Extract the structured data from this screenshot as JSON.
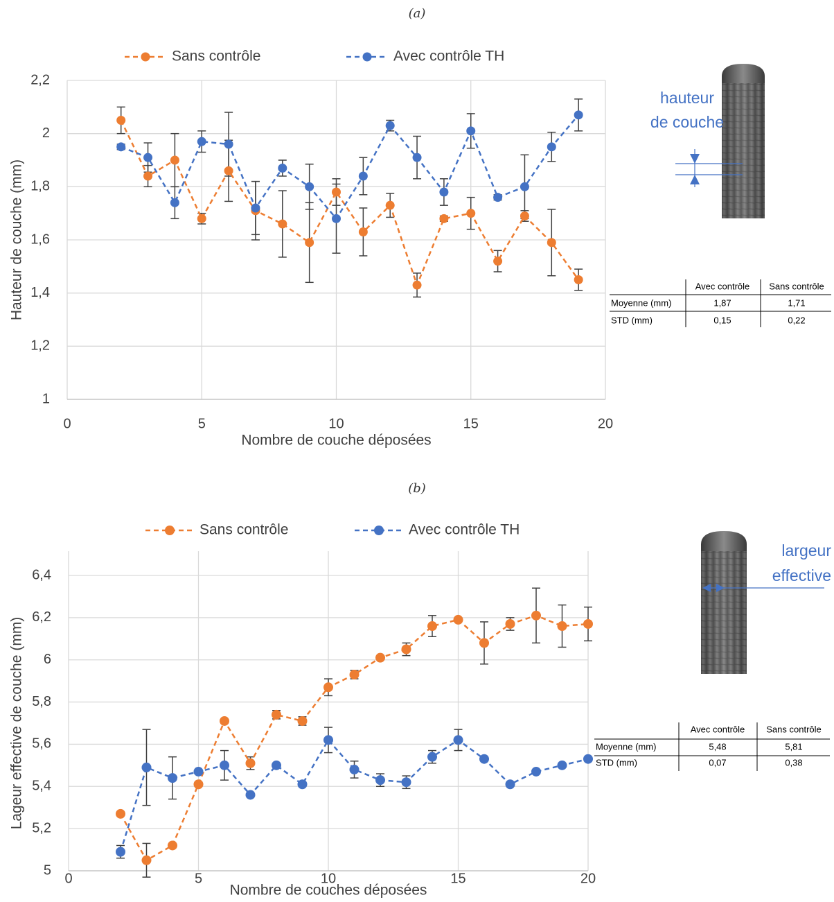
{
  "chart_data": [
    {
      "type": "line",
      "title": "(a)",
      "xlabel": "Nombre de couche déposées",
      "ylabel": "Hauteur de couche (mm)",
      "xlim": [
        0,
        20
      ],
      "xticks": [
        0,
        5,
        10,
        15,
        20
      ],
      "ylim": [
        1,
        2.2
      ],
      "yticks": [
        1,
        {
          "value": 1.2,
          "label": "1,2"
        },
        {
          "value": 1.4,
          "label": "1,4"
        },
        {
          "value": 1.6,
          "label": "1,6"
        },
        {
          "value": 1.8,
          "label": "1,8"
        },
        2,
        {
          "value": 2.2,
          "label": "2,2"
        }
      ],
      "grid": true,
      "legend": "top",
      "x": [
        2,
        3,
        4,
        5,
        6,
        7,
        8,
        9,
        10,
        11,
        12,
        13,
        14,
        15,
        16,
        17,
        18,
        19
      ],
      "series": [
        {
          "name": "Sans contrôle",
          "color": "#ed7d31",
          "values": [
            2.05,
            1.84,
            1.9,
            1.68,
            1.86,
            1.71,
            1.66,
            1.59,
            1.78,
            1.63,
            1.73,
            1.43,
            1.68,
            1.7,
            1.52,
            1.69,
            1.59,
            1.45
          ],
          "errors": [
            0.05,
            0.04,
            0.1,
            0.02,
            0.115,
            0.11,
            0.125,
            0.15,
            0.05,
            0.09,
            0.045,
            0.045,
            0.01,
            0.06,
            0.04,
            0.02,
            0.125,
            0.04
          ]
        },
        {
          "name": "Avec contrôle TH",
          "color": "#4472c4",
          "values": [
            1.95,
            1.91,
            1.74,
            1.97,
            1.96,
            1.72,
            1.87,
            1.8,
            1.68,
            1.84,
            2.03,
            1.91,
            1.78,
            2.01,
            1.76,
            1.8,
            1.95,
            2.07
          ],
          "errors": [
            0.01,
            0.055,
            0.06,
            0.04,
            0.12,
            0.1,
            0.03,
            0.085,
            0.13,
            0.07,
            0.02,
            0.08,
            0.05,
            0.065,
            0.01,
            0.12,
            0.055,
            0.06
          ]
        }
      ],
      "annotation": [
        "hauteur",
        "de couche"
      ],
      "table": {
        "columns": [
          "Avec contrôle",
          "Sans contrôle"
        ],
        "rows": [
          {
            "label": "Moyenne (mm)",
            "values": [
              "1,87",
              "1,71"
            ]
          },
          {
            "label": "STD (mm)",
            "values": [
              "0,15",
              "0,22"
            ]
          }
        ]
      }
    },
    {
      "type": "line",
      "title": "(b)",
      "xlabel": "Nombre de couches déposées",
      "ylabel": "Lageur effective de couche (mm)",
      "xlim": [
        0,
        20
      ],
      "xticks": [
        0,
        5,
        10,
        15,
        20
      ],
      "ylim": [
        5,
        6.4
      ],
      "yticks": [
        5,
        {
          "value": 5.2,
          "label": "5,2"
        },
        {
          "value": 5.4,
          "label": "5,4"
        },
        {
          "value": 5.6,
          "label": "5,6"
        },
        {
          "value": 5.8,
          "label": "5,8"
        },
        6,
        {
          "value": 6.2,
          "label": "6,2"
        },
        {
          "value": 6.4,
          "label": "6,4"
        }
      ],
      "grid": true,
      "legend": "top",
      "x": [
        2,
        3,
        4,
        5,
        6,
        7,
        8,
        9,
        10,
        11,
        12,
        13,
        14,
        15,
        16,
        17,
        18,
        19,
        20
      ],
      "series": [
        {
          "name": "Sans contrôle",
          "color": "#ed7d31",
          "values": [
            5.27,
            5.05,
            5.12,
            5.41,
            5.71,
            5.51,
            5.74,
            5.71,
            5.87,
            5.93,
            6.01,
            6.05,
            6.16,
            6.19,
            6.08,
            6.17,
            6.21,
            6.16,
            6.17
          ],
          "errors": [
            0,
            0.08,
            0,
            0,
            0,
            0.03,
            0.02,
            0.02,
            0.04,
            0.02,
            0.01,
            0.03,
            0.05,
            0.01,
            0.1,
            0.03,
            0.13,
            0.1,
            0.08
          ]
        },
        {
          "name": "Avec contrôle TH",
          "color": "#4472c4",
          "values": [
            5.09,
            5.49,
            5.44,
            5.47,
            5.5,
            5.36,
            5.5,
            5.41,
            5.62,
            5.48,
            5.43,
            5.42,
            5.54,
            5.62,
            5.53,
            5.41,
            5.47,
            5.5,
            5.53
          ],
          "errors": [
            0.03,
            0.18,
            0.1,
            0,
            0.07,
            0,
            0,
            0,
            0.06,
            0.04,
            0.03,
            0.03,
            0.03,
            0.05,
            0,
            0,
            0,
            0.01,
            0
          ]
        }
      ],
      "annotation": [
        "largeur",
        "effective"
      ],
      "table": {
        "columns": [
          "Avec contrôle",
          "Sans contrôle"
        ],
        "rows": [
          {
            "label": "Moyenne (mm)",
            "values": [
              "5,48",
              "5,81"
            ]
          },
          {
            "label": "STD (mm)",
            "values": [
              "0,07",
              "0,38"
            ]
          }
        ]
      }
    }
  ]
}
